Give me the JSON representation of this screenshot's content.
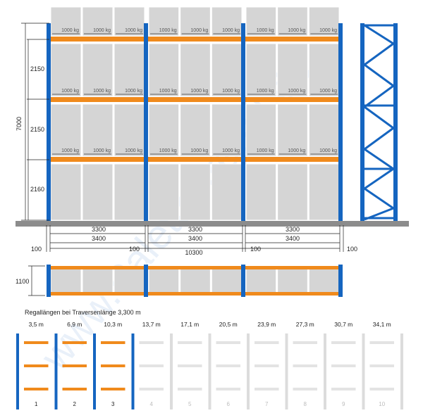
{
  "pallet_load_label": "1000 kg",
  "level_heights": [
    "2150",
    "2150",
    "2160"
  ],
  "total_height": "7000",
  "beam_lengths": [
    "3300",
    "3300",
    "3300"
  ],
  "bay_lengths": [
    "3400",
    "3400",
    "3400"
  ],
  "total_length": "10300",
  "gap_labels": {
    "outer_left": "100",
    "inner_left": "100",
    "inner_right": "100",
    "outer_right": "100"
  },
  "depth_label": "1100",
  "lengths_title": "Regallängen bei Traversenlänge 3,300 m",
  "lengths": [
    {
      "label": "3,5 m",
      "index": "1",
      "active": true
    },
    {
      "label": "6,9 m",
      "index": "2",
      "active": true
    },
    {
      "label": "10,3 m",
      "index": "3",
      "active": true
    },
    {
      "label": "13,7 m",
      "index": "4",
      "active": false
    },
    {
      "label": "17,1 m",
      "index": "5",
      "active": false
    },
    {
      "label": "20,5 m",
      "index": "6",
      "active": false
    },
    {
      "label": "23,9 m",
      "index": "7",
      "active": false
    },
    {
      "label": "27,3 m",
      "index": "8",
      "active": false
    },
    {
      "label": "30,7 m",
      "index": "9",
      "active": false
    },
    {
      "label": "34,1 m",
      "index": "10",
      "active": false
    }
  ],
  "watermark_text": "www.Palettenregal.de",
  "colors": {
    "upright": "#1565c0",
    "beam": "#f08a1c",
    "pallet": "#d5d5d5",
    "floor": "#8c8c8c",
    "ghost": "#dcdcdc"
  }
}
